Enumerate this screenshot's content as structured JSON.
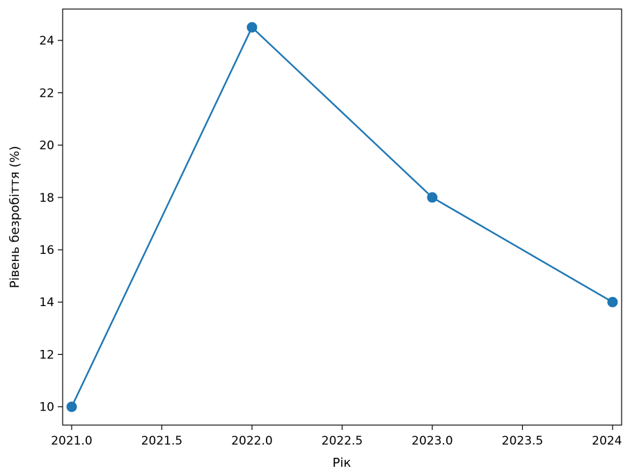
{
  "chart_data": {
    "type": "line",
    "title": "",
    "xlabel": "Рік",
    "ylabel": "Рівень безробіття (%)",
    "xlim": [
      2020.95,
      2024.05
    ],
    "ylim": [
      9.3,
      25.2
    ],
    "x_ticks": [
      2021.0,
      2021.5,
      2022.0,
      2022.5,
      2023.0,
      2023.5,
      2024.0
    ],
    "x_tick_labels": [
      "2021.0",
      "2021.5",
      "2022.0",
      "2022.5",
      "2023.0",
      "2023.5",
      "2024.0"
    ],
    "y_ticks": [
      10,
      12,
      14,
      16,
      18,
      20,
      22,
      24
    ],
    "y_tick_labels": [
      "10",
      "12",
      "14",
      "16",
      "18",
      "20",
      "22",
      "24"
    ],
    "grid": false,
    "legend": "none",
    "series": [
      {
        "color": "#1f77b4",
        "marker": "circle",
        "x": [
          2021,
          2022,
          2023,
          2024
        ],
        "y": [
          10,
          24.5,
          18,
          14
        ]
      }
    ]
  }
}
